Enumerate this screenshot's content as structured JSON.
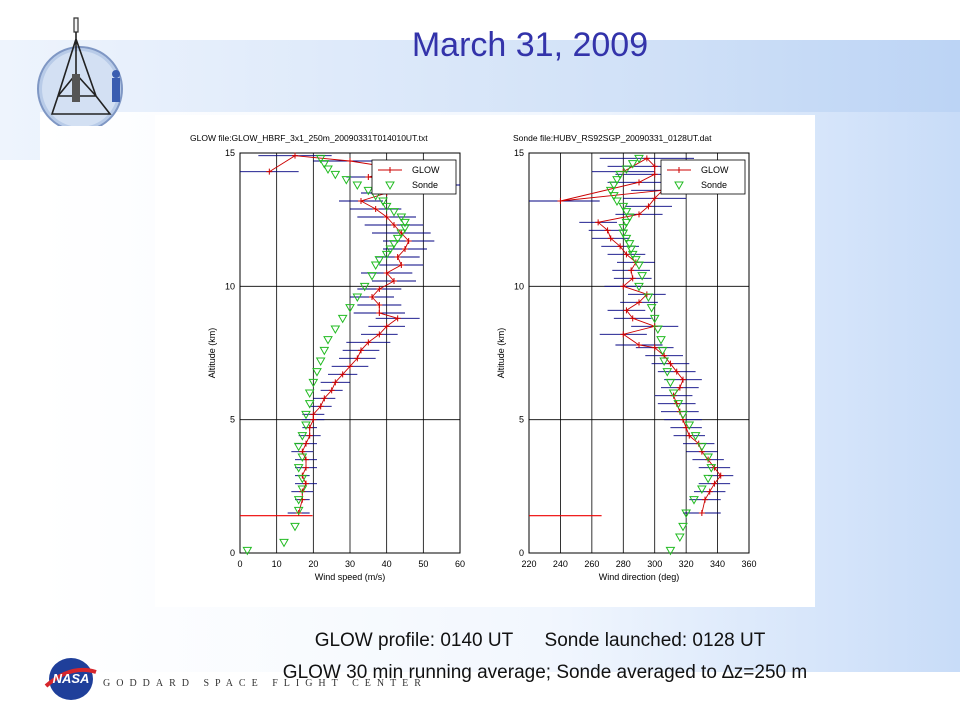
{
  "slide": {
    "title": "March 31, 2009",
    "caption_line1": "GLOW profile: 0140 UT      Sonde launched: 0128 UT",
    "caption_line2_prefix": "GLOW 30 min running average; Sonde averaged to ",
    "caption_line2_delta": "∆",
    "caption_line2_suffix": "z=250 m",
    "footer_org": "GODDARD SPACE FLIGHT CENTER",
    "logo_text": "NASA"
  },
  "colors": {
    "title": "#3333aa",
    "glow": "#cc0000",
    "glow_errbar": "#000080",
    "sonde": "#22bb22",
    "ref_line": "#ee0000"
  },
  "chart_data": [
    {
      "type": "line",
      "title": "GLOW file:GLOW_HBRF_3x1_250m_20090331T014010UT.txt",
      "xlabel": "Wind speed (m/s)",
      "ylabel": "Altitude (km)",
      "xlim": [
        0,
        60
      ],
      "ylim": [
        0,
        15
      ],
      "xticks": [
        "0",
        "10",
        "20",
        "30",
        "40",
        "50",
        "60"
      ],
      "yticks": [
        "0",
        "5",
        "10",
        "15"
      ],
      "grid": true,
      "legend": {
        "position": "top-right",
        "entries": [
          "GLOW",
          "Sonde"
        ]
      },
      "reference_altitude": 1.4,
      "series": [
        {
          "name": "GLOW",
          "marker": "plus",
          "x": [
            16,
            17,
            17,
            18,
            17,
            18,
            18,
            17,
            18,
            19,
            19,
            20,
            20,
            22,
            23,
            25,
            26,
            28,
            30,
            32,
            33,
            35,
            38,
            40,
            43,
            38,
            38,
            36,
            38,
            42,
            40,
            44,
            43,
            45,
            46,
            44,
            42,
            40,
            37,
            33,
            40,
            58,
            35,
            44,
            30,
            15,
            8
          ],
          "y": [
            1.5,
            2.0,
            2.3,
            2.6,
            2.9,
            3.2,
            3.5,
            3.8,
            4.1,
            4.4,
            4.7,
            5.0,
            5.2,
            5.5,
            5.8,
            6.1,
            6.4,
            6.7,
            7.0,
            7.3,
            7.6,
            7.9,
            8.2,
            8.5,
            8.8,
            9.0,
            9.3,
            9.6,
            9.9,
            10.2,
            10.5,
            10.8,
            11.1,
            11.4,
            11.7,
            12.0,
            12.3,
            12.6,
            12.9,
            13.2,
            13.5,
            13.8,
            14.1,
            14.4,
            14.7,
            14.9,
            14.3
          ],
          "err": [
            3,
            2,
            3,
            3,
            2,
            3,
            3,
            3,
            3,
            3,
            2,
            3,
            3,
            3,
            3,
            3,
            4,
            4,
            5,
            5,
            5,
            6,
            5,
            5,
            6,
            7,
            6,
            6,
            6,
            6,
            7,
            6,
            6,
            6,
            7,
            8,
            8,
            8,
            7,
            6,
            7,
            8,
            6,
            8,
            10,
            10,
            8
          ]
        },
        {
          "name": "Sonde",
          "marker": "triangle-down",
          "x": [
            2,
            12,
            15,
            16,
            16,
            17,
            17,
            16,
            17,
            16,
            17,
            18,
            18,
            19,
            19,
            20,
            21,
            22,
            23,
            24,
            26,
            28,
            30,
            32,
            34,
            36,
            37,
            38,
            40,
            41,
            42,
            43,
            44,
            45,
            45,
            44,
            42,
            40,
            39,
            37,
            35,
            32,
            29,
            26,
            24,
            23,
            22
          ],
          "y": [
            0.1,
            0.4,
            1.0,
            1.6,
            2.0,
            2.4,
            2.8,
            3.2,
            3.6,
            4.0,
            4.4,
            4.8,
            5.2,
            5.6,
            6.0,
            6.4,
            6.8,
            7.2,
            7.6,
            8.0,
            8.4,
            8.8,
            9.2,
            9.6,
            10.0,
            10.4,
            10.8,
            11.0,
            11.2,
            11.4,
            11.6,
            11.8,
            12.0,
            12.2,
            12.4,
            12.6,
            12.8,
            13.0,
            13.2,
            13.4,
            13.6,
            13.8,
            14.0,
            14.2,
            14.4,
            14.6,
            14.8
          ]
        }
      ]
    },
    {
      "type": "line",
      "title": "Sonde file:HUBV_RS92SGP_20090331_0128UT.dat",
      "xlabel": "Wind direction (deg)",
      "ylabel": "Altitude (km)",
      "xlim": [
        220,
        360
      ],
      "ylim": [
        0,
        15
      ],
      "xticks": [
        "220",
        "240",
        "260",
        "280",
        "300",
        "320",
        "340",
        "360"
      ],
      "yticks": [
        "0",
        "5",
        "10",
        "15"
      ],
      "grid": true,
      "legend": {
        "position": "top-right",
        "entries": [
          "GLOW",
          "Sonde"
        ]
      },
      "reference_altitude": 1.4,
      "series": [
        {
          "name": "GLOW",
          "marker": "plus",
          "x": [
            330,
            332,
            335,
            338,
            342,
            338,
            334,
            330,
            328,
            322,
            320,
            318,
            316,
            314,
            312,
            316,
            318,
            314,
            310,
            306,
            300,
            290,
            280,
            300,
            286,
            282,
            290,
            295,
            280,
            286,
            285,
            288,
            282,
            278,
            272,
            270,
            264,
            290,
            296,
            300,
            305,
            240,
            290,
            300,
            300,
            295,
            280
          ],
          "y": [
            1.5,
            2.0,
            2.3,
            2.6,
            2.9,
            3.2,
            3.5,
            3.8,
            4.1,
            4.4,
            4.7,
            5.0,
            5.3,
            5.6,
            5.9,
            6.2,
            6.5,
            6.8,
            7.1,
            7.4,
            7.7,
            7.8,
            8.2,
            8.5,
            8.8,
            9.1,
            9.4,
            9.7,
            10.0,
            10.3,
            10.6,
            10.9,
            11.2,
            11.5,
            11.8,
            12.1,
            12.4,
            12.7,
            13.0,
            13.3,
            13.6,
            13.2,
            13.9,
            14.2,
            14.5,
            14.8,
            14.3
          ],
          "err": [
            12,
            10,
            10,
            10,
            8,
            10,
            10,
            10,
            10,
            10,
            10,
            12,
            12,
            12,
            12,
            12,
            12,
            12,
            12,
            12,
            12,
            15,
            15,
            15,
            12,
            12,
            12,
            12,
            12,
            12,
            12,
            12,
            12,
            12,
            12,
            12,
            12,
            15,
            15,
            20,
            20,
            25,
            20,
            25,
            30,
            30,
            20
          ]
        },
        {
          "name": "Sonde",
          "marker": "triangle-down",
          "x": [
            310,
            316,
            318,
            320,
            325,
            330,
            334,
            336,
            334,
            330,
            326,
            322,
            318,
            315,
            312,
            310,
            308,
            306,
            305,
            304,
            302,
            300,
            298,
            296,
            290,
            292,
            290,
            288,
            286,
            285,
            284,
            282,
            280,
            280,
            282,
            284,
            282,
            280,
            276,
            274,
            272,
            274,
            276,
            278,
            282,
            286,
            290
          ],
          "y": [
            0.1,
            0.6,
            1.0,
            1.5,
            2.0,
            2.4,
            2.8,
            3.2,
            3.6,
            4.0,
            4.4,
            4.8,
            5.2,
            5.6,
            6.0,
            6.4,
            6.8,
            7.2,
            7.6,
            8.0,
            8.4,
            8.8,
            9.2,
            9.6,
            10.0,
            10.4,
            10.8,
            11.0,
            11.2,
            11.4,
            11.6,
            11.8,
            12.0,
            12.2,
            12.4,
            12.6,
            12.8,
            13.0,
            13.2,
            13.4,
            13.6,
            13.8,
            14.0,
            14.2,
            14.4,
            14.6,
            14.8
          ]
        }
      ]
    }
  ]
}
